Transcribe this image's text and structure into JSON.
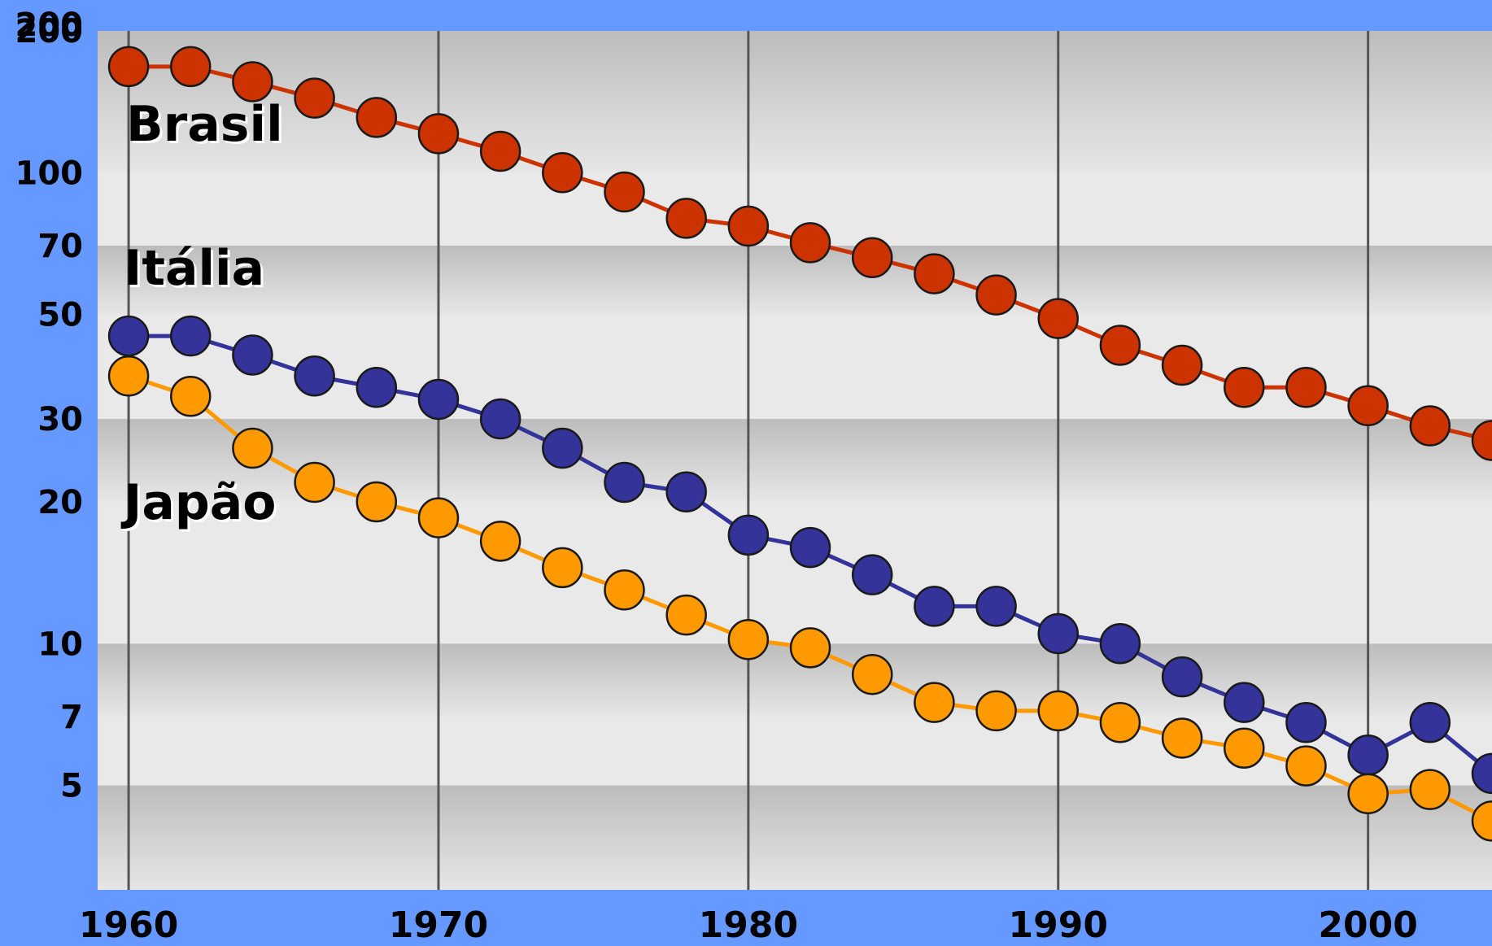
{
  "chart_data": {
    "type": "line",
    "y_scale": "log",
    "x_range": [
      1959,
      2004
    ],
    "y_range": [
      3,
      200
    ],
    "x_ticks": [
      1960,
      1970,
      1980,
      1990,
      2000
    ],
    "y_ticks": [
      5,
      7,
      10,
      20,
      30,
      50,
      70,
      100,
      200
    ],
    "x_tick_labels": [
      "1960",
      "1970",
      "1980",
      "1990",
      "2000"
    ],
    "y_tick_labels": [
      "5",
      "7",
      "10",
      "20",
      "30",
      "50",
      "70",
      "100",
      "200"
    ],
    "grid": "vertical lines at x ticks; horizontal alternating bands",
    "series": [
      {
        "name": "Brasil",
        "color": "#cc3300",
        "x": [
          1960,
          1962,
          1964,
          1966,
          1968,
          1970,
          1972,
          1974,
          1976,
          1978,
          1980,
          1982,
          1984,
          1986,
          1988,
          1990,
          1992,
          1994,
          1996,
          1998,
          2000,
          2002,
          2004
        ],
        "y": [
          168,
          168,
          156,
          144,
          131,
          121,
          111,
          100,
          91,
          80,
          77,
          71,
          66,
          61,
          55,
          49,
          43,
          39,
          35,
          35,
          32,
          29,
          27
        ]
      },
      {
        "name": "Itália",
        "color": "#333399",
        "x": [
          1960,
          1962,
          1964,
          1966,
          1968,
          1970,
          1972,
          1974,
          1976,
          1978,
          1980,
          1982,
          1984,
          1986,
          1988,
          1990,
          1992,
          1994,
          1996,
          1998,
          2000,
          2002,
          2004
        ],
        "y": [
          45,
          45,
          41,
          37,
          35,
          33,
          30,
          26,
          22,
          21,
          17,
          16,
          14,
          12,
          12,
          10.5,
          10,
          8.5,
          7.5,
          6.8,
          5.8,
          6.8,
          5.3
        ]
      },
      {
        "name": "Japão",
        "color": "#ff9900",
        "x": [
          1960,
          1962,
          1964,
          1966,
          1968,
          1970,
          1972,
          1974,
          1976,
          1978,
          1980,
          1982,
          1984,
          1986,
          1988,
          1990,
          1992,
          1994,
          1996,
          1998,
          2000,
          2002,
          2004
        ],
        "y": [
          37,
          33.5,
          26,
          22,
          20,
          18.5,
          16.5,
          14.5,
          13,
          11.5,
          10.2,
          9.8,
          8.6,
          7.5,
          7.2,
          7.2,
          6.8,
          6.3,
          6,
          5.5,
          4.8,
          4.9,
          4.2
        ]
      }
    ]
  }
}
